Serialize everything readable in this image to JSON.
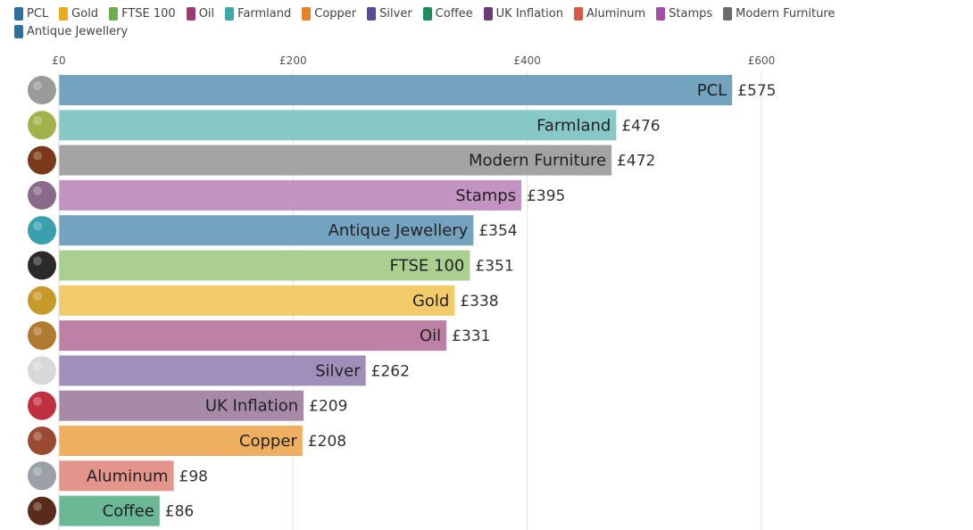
{
  "chart_data": {
    "type": "bar",
    "orientation": "horizontal",
    "title": "",
    "xlabel": "",
    "ylabel": "",
    "xlim": [
      0,
      600
    ],
    "x_ticks": [
      "£0",
      "£200",
      "£400",
      "£600"
    ],
    "x_tick_values": [
      0,
      200,
      400,
      600
    ],
    "grid": true,
    "legend_position": "top-left",
    "legend": [
      {
        "name": "PCL",
        "color": "#2e6f9e"
      },
      {
        "name": "Gold",
        "color": "#e8ad1b"
      },
      {
        "name": "FTSE 100",
        "color": "#6fae4f"
      },
      {
        "name": "Oil",
        "color": "#9b3a73"
      },
      {
        "name": "Farmland",
        "color": "#3aa9a9"
      },
      {
        "name": "Copper",
        "color": "#e38428"
      },
      {
        "name": "Silver",
        "color": "#5a4a9a"
      },
      {
        "name": "Coffee",
        "color": "#1e8c5a"
      },
      {
        "name": "UK Inflation",
        "color": "#6a3b78"
      },
      {
        "name": "Aluminum",
        "color": "#d65a45"
      },
      {
        "name": "Stamps",
        "color": "#a44ea8"
      },
      {
        "name": "Modern Furniture",
        "color": "#6b6b6b"
      },
      {
        "name": "Antique Jewellery",
        "color": "#2e6f9e"
      }
    ],
    "categories": [
      "PCL",
      "Farmland",
      "Modern Furniture",
      "Stamps",
      "Antique Jewellery",
      "FTSE 100",
      "Gold",
      "Oil",
      "Silver",
      "UK Inflation",
      "Copper",
      "Aluminum",
      "Coffee"
    ],
    "values": [
      575,
      476,
      472,
      395,
      354,
      351,
      338,
      331,
      262,
      209,
      208,
      98,
      86
    ],
    "value_labels": [
      "£575",
      "£476",
      "£472",
      "£395",
      "£354",
      "£351",
      "£338",
      "£331",
      "£262",
      "£209",
      "£208",
      "£98",
      "£86"
    ],
    "bar_colors": [
      "#74a3bf",
      "#86c9c7",
      "#a3a3a3",
      "#c393c2",
      "#74a3bf",
      "#a9cf91",
      "#f1cb6a",
      "#bf80a5",
      "#a08fbb",
      "#a68aa8",
      "#eeb060",
      "#e3958c",
      "#6bb896"
    ],
    "icons": [
      "house-photo",
      "farmland-photo",
      "furniture-photo",
      "stamp-photo",
      "jewellery-photo",
      "ftse-photo",
      "gold-photo",
      "oil-photo",
      "silver-photo",
      "inflation-chart-photo",
      "copper-photo",
      "aluminum-photo",
      "coffee-photo"
    ],
    "icon_colors": [
      "#9a9a9a",
      "#a2b24a",
      "#7a3a1a",
      "#8a6a8a",
      "#3aa0b0",
      "#2a2a2a",
      "#c89a2a",
      "#b07a30",
      "#d8d8d8",
      "#c03040",
      "#9a4a30",
      "#9aa0a8",
      "#5a2a1a"
    ]
  }
}
